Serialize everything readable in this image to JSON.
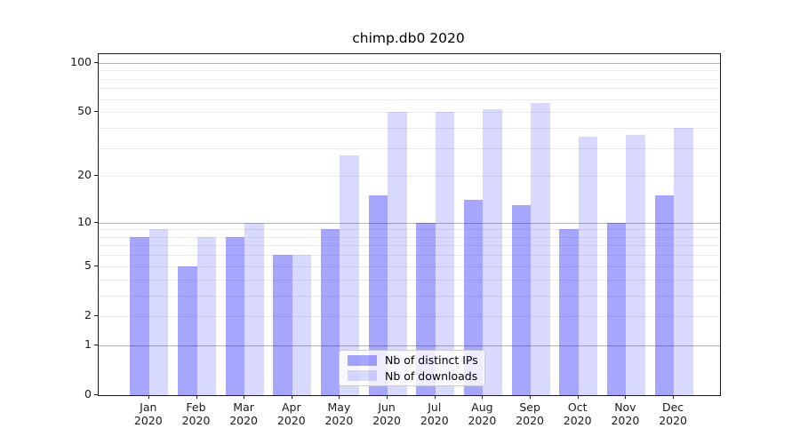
{
  "figure": {
    "background": "#ffffff",
    "axis_color": "#1c1c1c",
    "major_grid_color": "#b3b3b3",
    "minor_grid_color": "#ebebeb"
  },
  "chart_data": {
    "type": "bar",
    "title": "chimp.db0 2020",
    "year": "2020",
    "categories": [
      "Jan",
      "Feb",
      "Mar",
      "Apr",
      "May",
      "Jun",
      "Jul",
      "Aug",
      "Sep",
      "Oct",
      "Nov",
      "Dec"
    ],
    "series": [
      {
        "name": "Nb of distinct IPs",
        "color": "rgba(0,0,255,0.35)",
        "color_hex_on_white": "#a6a6ff",
        "values": [
          8,
          5,
          8,
          6,
          9,
          15,
          10,
          14,
          13,
          9,
          10,
          15
        ]
      },
      {
        "name": "Nb of downloads",
        "color": "rgba(0,0,255,0.15)",
        "color_hex_on_white": "#d9d9ff",
        "values": [
          9,
          8,
          10,
          6,
          27,
          50,
          50,
          52,
          57,
          35,
          36,
          40
        ]
      }
    ],
    "xlabel": "",
    "ylabel": "",
    "y_axis": {
      "scale": "log1p",
      "ticks": [
        0,
        1,
        2,
        5,
        10,
        20,
        50,
        100
      ],
      "minor_gridlines": [
        3,
        4,
        6,
        7,
        8,
        9,
        30,
        40,
        60,
        70,
        80,
        90
      ],
      "top_value": 113
    },
    "grid": true,
    "legend_position": "lower-center"
  }
}
